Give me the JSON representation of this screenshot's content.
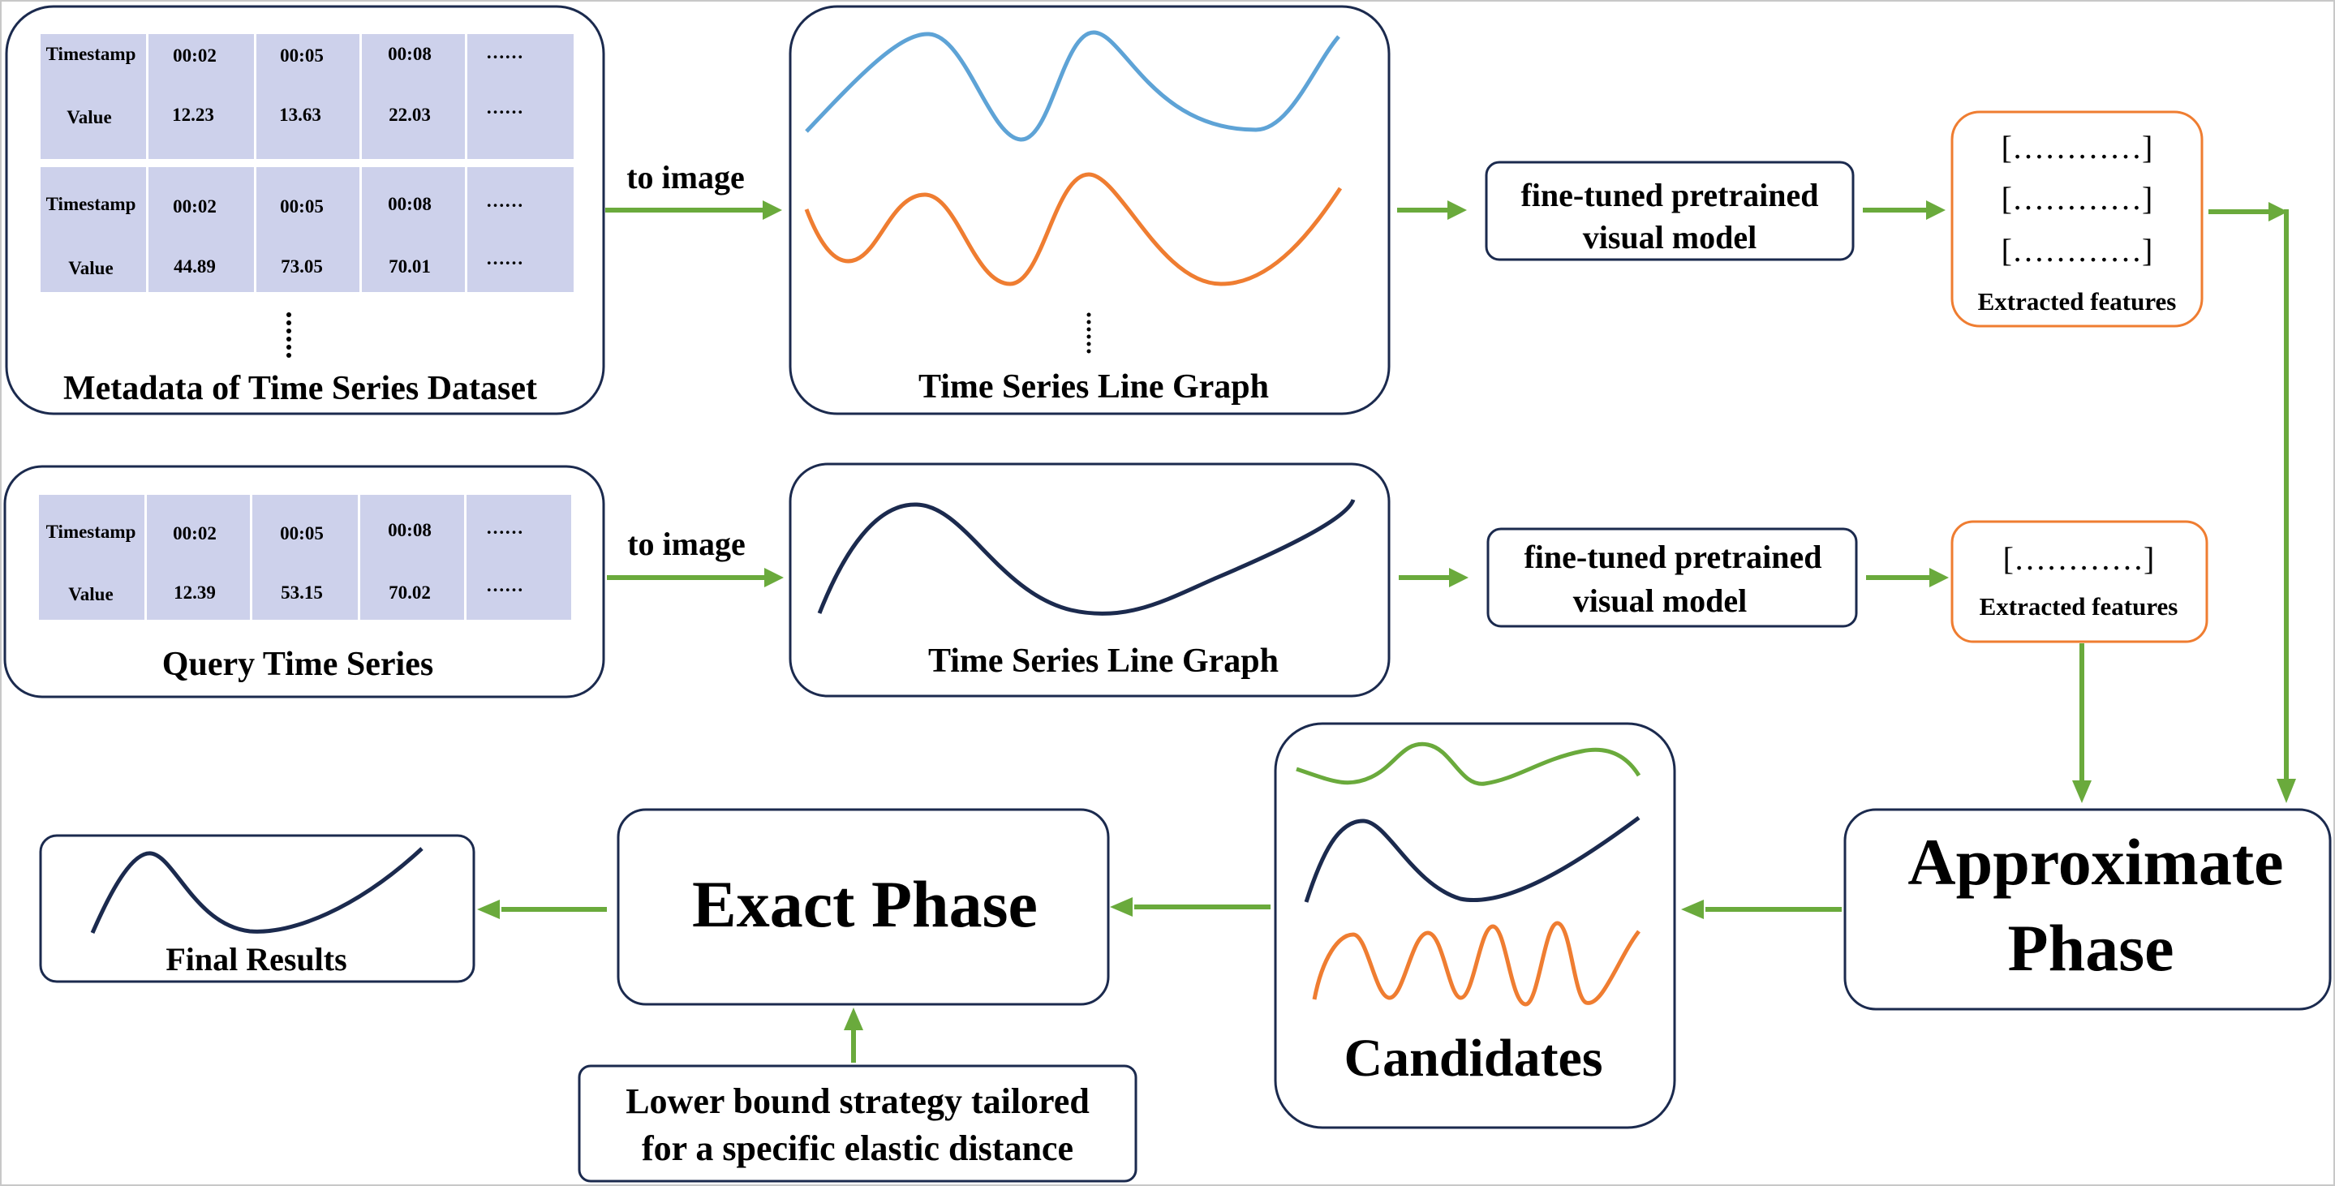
{
  "colors": {
    "border": "#1b2a4e",
    "arrow": "#6aaa3c",
    "table_cell": "#cdd1eb",
    "blue_line": "#5ea3d6",
    "orange_line": "#ef7d31",
    "navy_line": "#1b2a4e",
    "green_line": "#6aaa3c"
  },
  "dataset": {
    "tables": [
      {
        "header_row": [
          "Timestamp",
          "00:02",
          "00:05",
          "00:08",
          "……"
        ],
        "value_row": [
          "Value",
          "12.23",
          "13.63",
          "22.03",
          "……"
        ]
      },
      {
        "header_row": [
          "Timestamp",
          "00:02",
          "00:05",
          "00:08",
          "……"
        ],
        "value_row": [
          "Value",
          "44.89",
          "73.05",
          "70.01",
          "……"
        ]
      }
    ],
    "title": "Metadata of Time Series Dataset"
  },
  "query": {
    "table": {
      "header_row": [
        "Timestamp",
        "00:02",
        "00:05",
        "00:08",
        "……"
      ],
      "value_row": [
        "Value",
        "12.39",
        "53.15",
        "70.02",
        "……"
      ]
    },
    "title": "Query Time Series"
  },
  "to_image_label": "to image",
  "line_graph_title": "Time Series Line Graph",
  "model": {
    "line1": "fine-tuned pretrained",
    "line2": "visual model"
  },
  "features": {
    "vector": "[…………]",
    "label": "Extracted features"
  },
  "approximate_phase": {
    "line1": "Approximate",
    "line2": "Phase"
  },
  "candidates": "Candidates",
  "exact_phase": "Exact Phase",
  "lower_bound": {
    "line1": "Lower bound strategy tailored",
    "line2": "for a specific elastic distance"
  },
  "final_results": "Final Results"
}
